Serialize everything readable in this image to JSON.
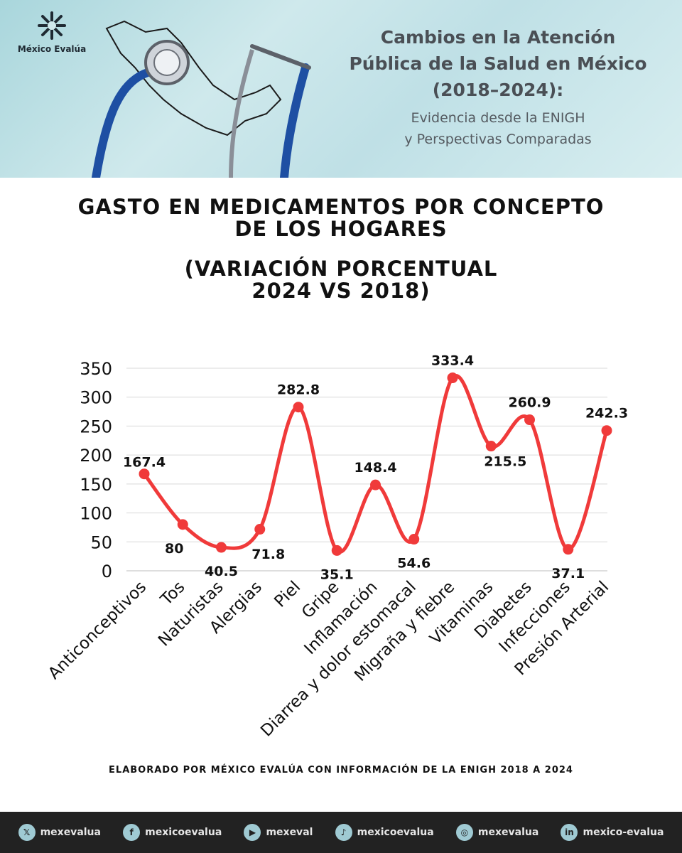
{
  "header": {
    "logo_text": "México Evalúa",
    "title_lines": [
      "Cambios en la Atención",
      "Pública de la Salud en México",
      "(2018–2024):"
    ],
    "subtitle_lines": [
      "Evidencia desde la ENIGH",
      "y Perspectivas Comparadas"
    ]
  },
  "chart_data": {
    "type": "line",
    "title_lines": [
      "GASTO EN MEDICAMENTOS POR CONCEPTO",
      "DE LOS HOGARES"
    ],
    "subtitle_lines": [
      "(VARIACIÓN PORCENTUAL",
      "2024 VS 2018)"
    ],
    "categories": [
      "Anticonceptivos",
      "Tos",
      "Naturistas",
      "Alergias",
      "Piel",
      "Gripe",
      "Inflamación",
      "Diarrea y dolor estomacal",
      "Migraña y fiebre",
      "Vitaminas",
      "Diabetes",
      "Infecciones",
      "Presión Arterial"
    ],
    "values": [
      167.4,
      80,
      40.5,
      71.8,
      282.8,
      35.1,
      148.4,
      54.6,
      333.4,
      215.5,
      260.9,
      37.1,
      242.3
    ],
    "data_labels": [
      "167.4",
      "80",
      "40.5",
      "71.8",
      "282.8",
      "35.1",
      "148.4",
      "54.6",
      "333.4",
      "215.5",
      "260.9",
      "37.1",
      "242.3"
    ],
    "y_ticks": [
      0,
      50,
      100,
      150,
      200,
      250,
      300,
      350
    ],
    "ylim": [
      0,
      350
    ],
    "grid": true,
    "smooth": true,
    "line_color": "#f03a3a"
  },
  "source": "ELABORADO POR MÉXICO EVALÚA CON INFORMACIÓN DE LA ENIGH 2018 A 2024",
  "footer": {
    "links": [
      {
        "icon": "x-icon",
        "glyph": "𝕏",
        "label": "mexevalua"
      },
      {
        "icon": "facebook-icon",
        "glyph": "f",
        "label": "mexicoevalua"
      },
      {
        "icon": "youtube-icon",
        "glyph": "▶",
        "label": "mexeval"
      },
      {
        "icon": "tiktok-icon",
        "glyph": "♪",
        "label": "mexicoevalua"
      },
      {
        "icon": "instagram-icon",
        "glyph": "◎",
        "label": "mexevalua"
      },
      {
        "icon": "linkedin-icon",
        "glyph": "in",
        "label": "mexico-evalua"
      }
    ]
  }
}
